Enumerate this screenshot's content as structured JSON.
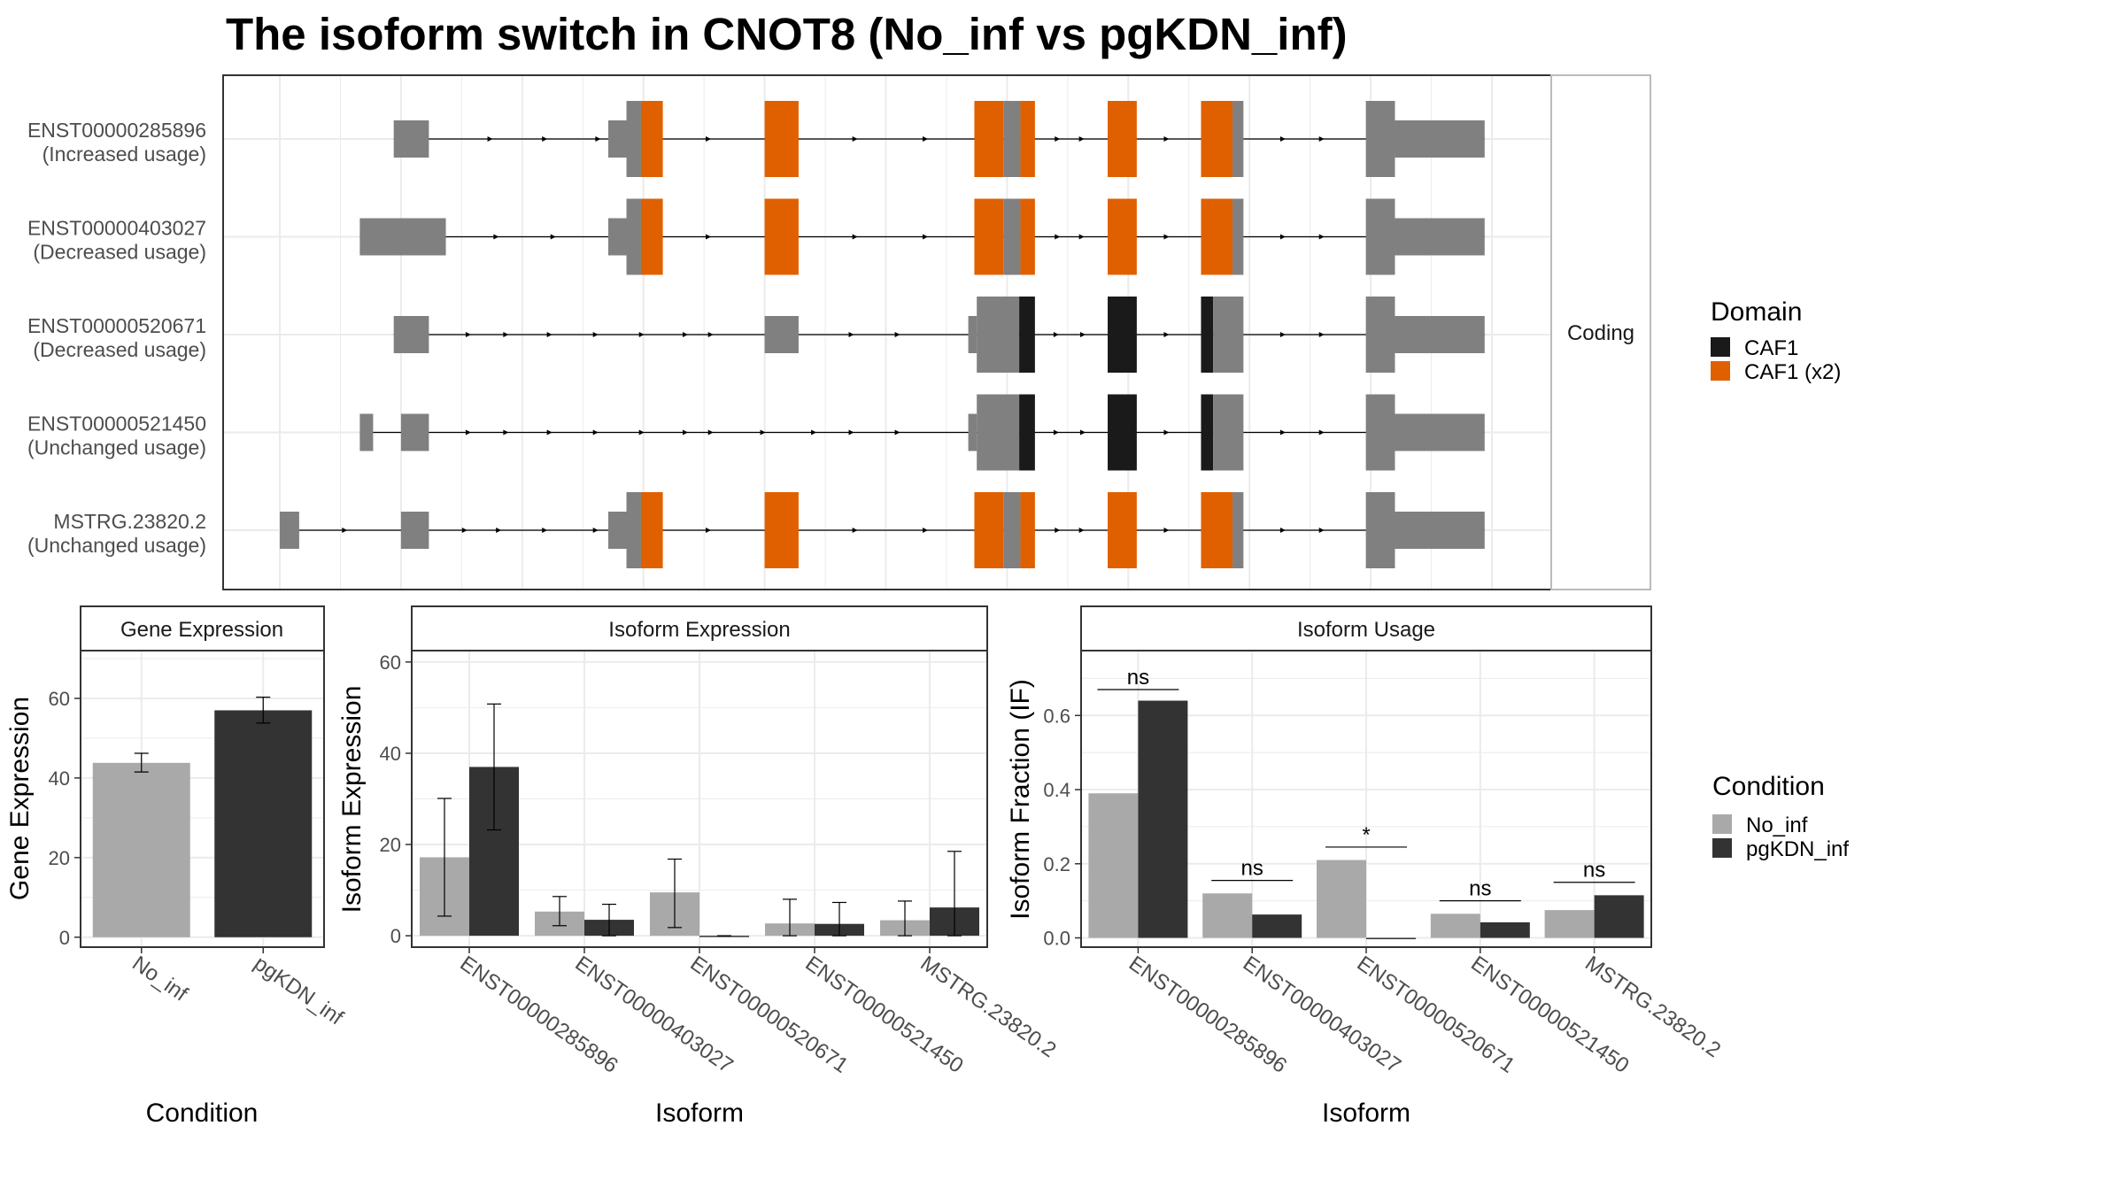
{
  "title": "The isoform switch in CNOT8 (No_inf vs pgKDN_inf)",
  "colors": {
    "utr": "#808080",
    "caf1": "#1a1a1a",
    "caf1_x2": "#e06000",
    "no_inf": "#a9a9a9",
    "pgkdn_inf": "#333333",
    "grid": "#ebebeb",
    "panel_border": "#333333",
    "strip_border": "#bbbbbb"
  },
  "chart_data": [
    {
      "type": "gene-structure",
      "facet_label": "Coding",
      "x_range": [
        0,
        1000
      ],
      "isoforms": [
        {
          "id": "ENST00000285896",
          "usage": "(Increased usage)",
          "blocks": [
            {
              "s": 94,
              "e": 123,
              "h": "t",
              "c": "utr"
            },
            {
              "s": 271,
              "e": 290,
              "h": "t",
              "c": "utr"
            },
            {
              "s": 286,
              "e": 298,
              "h": "f",
              "c": "utr"
            },
            {
              "s": 298,
              "e": 316,
              "h": "f",
              "c": "caf1_x2"
            },
            {
              "s": 400,
              "e": 428,
              "h": "f",
              "c": "caf1_x2"
            },
            {
              "s": 573,
              "e": 597,
              "h": "f",
              "c": "caf1_x2"
            },
            {
              "s": 597,
              "e": 611,
              "h": "f",
              "c": "utr"
            },
            {
              "s": 611,
              "e": 623,
              "h": "f",
              "c": "caf1_x2"
            },
            {
              "s": 683,
              "e": 707,
              "h": "f",
              "c": "caf1_x2"
            },
            {
              "s": 760,
              "e": 786,
              "h": "f",
              "c": "caf1_x2"
            },
            {
              "s": 786,
              "e": 795,
              "h": "f",
              "c": "utr"
            },
            {
              "s": 896,
              "e": 920,
              "h": "f",
              "c": "utr"
            },
            {
              "s": 920,
              "e": 994,
              "h": "t",
              "c": "utr"
            }
          ],
          "arrows": [
            175,
            220,
            264,
            355,
            476,
            534,
            643,
            663,
            733,
            829,
            861
          ]
        },
        {
          "id": "ENST00000403027",
          "usage": "(Decreased usage)",
          "blocks": [
            {
              "s": 66,
              "e": 137,
              "h": "t",
              "c": "utr"
            },
            {
              "s": 271,
              "e": 290,
              "h": "t",
              "c": "utr"
            },
            {
              "s": 286,
              "e": 298,
              "h": "f",
              "c": "utr"
            },
            {
              "s": 298,
              "e": 316,
              "h": "f",
              "c": "caf1_x2"
            },
            {
              "s": 400,
              "e": 428,
              "h": "f",
              "c": "caf1_x2"
            },
            {
              "s": 573,
              "e": 597,
              "h": "f",
              "c": "caf1_x2"
            },
            {
              "s": 597,
              "e": 611,
              "h": "f",
              "c": "utr"
            },
            {
              "s": 611,
              "e": 623,
              "h": "f",
              "c": "caf1_x2"
            },
            {
              "s": 683,
              "e": 707,
              "h": "f",
              "c": "caf1_x2"
            },
            {
              "s": 760,
              "e": 786,
              "h": "f",
              "c": "caf1_x2"
            },
            {
              "s": 786,
              "e": 795,
              "h": "f",
              "c": "utr"
            },
            {
              "s": 896,
              "e": 920,
              "h": "f",
              "c": "utr"
            },
            {
              "s": 920,
              "e": 994,
              "h": "t",
              "c": "utr"
            }
          ],
          "arrows": [
            180,
            227,
            355,
            476,
            534,
            643,
            663,
            733,
            829,
            861
          ]
        },
        {
          "id": "ENST00000520671",
          "usage": "(Decreased usage)",
          "blocks": [
            {
              "s": 94,
              "e": 123,
              "h": "t",
              "c": "utr"
            },
            {
              "s": 400,
              "e": 428,
              "h": "t",
              "c": "utr"
            },
            {
              "s": 568,
              "e": 575,
              "h": "t",
              "c": "utr"
            },
            {
              "s": 575,
              "e": 610,
              "h": "f",
              "c": "utr"
            },
            {
              "s": 610,
              "e": 623,
              "h": "f",
              "c": "caf1"
            },
            {
              "s": 683,
              "e": 707,
              "h": "f",
              "c": "caf1"
            },
            {
              "s": 760,
              "e": 770,
              "h": "f",
              "c": "caf1"
            },
            {
              "s": 770,
              "e": 795,
              "h": "f",
              "c": "utr"
            },
            {
              "s": 896,
              "e": 920,
              "h": "f",
              "c": "utr"
            },
            {
              "s": 920,
              "e": 994,
              "h": "t",
              "c": "utr"
            }
          ],
          "arrows": [
            157,
            188,
            224,
            262,
            300,
            336,
            357,
            473,
            511,
            642,
            664,
            733,
            829,
            861
          ]
        },
        {
          "id": "ENST00000521450",
          "usage": "(Unchanged usage)",
          "blocks": [
            {
              "s": 66,
              "e": 77,
              "h": "t",
              "c": "utr"
            },
            {
              "s": 100,
              "e": 123,
              "h": "t",
              "c": "utr"
            },
            {
              "s": 568,
              "e": 575,
              "h": "t",
              "c": "utr"
            },
            {
              "s": 575,
              "e": 610,
              "h": "f",
              "c": "utr"
            },
            {
              "s": 610,
              "e": 623,
              "h": "f",
              "c": "caf1"
            },
            {
              "s": 683,
              "e": 707,
              "h": "f",
              "c": "caf1"
            },
            {
              "s": 760,
              "e": 770,
              "h": "f",
              "c": "caf1"
            },
            {
              "s": 770,
              "e": 795,
              "h": "f",
              "c": "utr"
            },
            {
              "s": 896,
              "e": 920,
              "h": "f",
              "c": "utr"
            },
            {
              "s": 920,
              "e": 994,
              "h": "t",
              "c": "utr"
            }
          ],
          "arrows": [
            157,
            188,
            224,
            262,
            300,
            336,
            357,
            400,
            442,
            473,
            511,
            642,
            664,
            733,
            829,
            861
          ]
        },
        {
          "id": "MSTRG.23820.2",
          "usage": "(Unchanged usage)",
          "blocks": [
            {
              "s": 0,
              "e": 16,
              "h": "t",
              "c": "utr"
            },
            {
              "s": 100,
              "e": 123,
              "h": "t",
              "c": "utr"
            },
            {
              "s": 271,
              "e": 290,
              "h": "t",
              "c": "utr"
            },
            {
              "s": 286,
              "e": 298,
              "h": "f",
              "c": "utr"
            },
            {
              "s": 298,
              "e": 316,
              "h": "f",
              "c": "caf1_x2"
            },
            {
              "s": 400,
              "e": 428,
              "h": "f",
              "c": "caf1_x2"
            },
            {
              "s": 573,
              "e": 597,
              "h": "f",
              "c": "caf1_x2"
            },
            {
              "s": 597,
              "e": 611,
              "h": "f",
              "c": "utr"
            },
            {
              "s": 611,
              "e": 623,
              "h": "f",
              "c": "caf1_x2"
            },
            {
              "s": 683,
              "e": 707,
              "h": "f",
              "c": "caf1_x2"
            },
            {
              "s": 760,
              "e": 786,
              "h": "f",
              "c": "caf1_x2"
            },
            {
              "s": 786,
              "e": 795,
              "h": "f",
              "c": "utr"
            },
            {
              "s": 896,
              "e": 920,
              "h": "f",
              "c": "utr"
            },
            {
              "s": 920,
              "e": 994,
              "h": "t",
              "c": "utr"
            }
          ],
          "arrows": [
            55,
            154,
            182,
            220,
            262,
            355,
            476,
            534,
            643,
            663,
            733,
            829,
            861
          ]
        }
      ],
      "legend": {
        "title": "Domain",
        "items": [
          {
            "label": "CAF1",
            "color_key": "caf1"
          },
          {
            "label": "CAF1 (x2)",
            "color_key": "caf1_x2"
          }
        ]
      }
    },
    {
      "type": "bar",
      "facet_label": "Gene Expression",
      "xlabel": "Condition",
      "ylabel": "Gene Expression",
      "ylim": [
        -2.5,
        72
      ],
      "y_ticks": [
        0,
        20,
        40,
        60
      ],
      "categories": [
        "No_inf",
        "pgKDN_inf"
      ],
      "values": [
        43.8,
        57
      ],
      "errors": [
        [
          41.5,
          46.2
        ],
        [
          53.8,
          60.3
        ]
      ]
    },
    {
      "type": "bar",
      "facet_label": "Isoform Expression",
      "xlabel": "Isoform",
      "ylabel": "Isoform Expression",
      "ylim": [
        -2.5,
        62.5
      ],
      "y_ticks": [
        0,
        20,
        40,
        60
      ],
      "categories": [
        "ENST00000285896",
        "ENST00000403027",
        "ENST00000520671",
        "ENST00000521450",
        "MSTRG.23820.2"
      ],
      "series": [
        {
          "name": "No_inf",
          "values": [
            17.2,
            5.3,
            9.5,
            2.7,
            3.4
          ],
          "errors": [
            [
              4.3,
              30.1
            ],
            [
              2.2,
              8.6
            ],
            [
              1.8,
              16.8
            ],
            [
              0,
              8
            ],
            [
              0,
              7.6
            ]
          ]
        },
        {
          "name": "pgKDN_inf",
          "values": [
            37,
            3.5,
            0,
            2.6,
            6.2
          ],
          "errors": [
            [
              23.2,
              50.8
            ],
            [
              0,
              6.9
            ],
            [
              0,
              0
            ],
            [
              0,
              7.3
            ],
            [
              0,
              18.5
            ]
          ]
        }
      ]
    },
    {
      "type": "bar",
      "facet_label": "Isoform Usage",
      "xlabel": "Isoform",
      "ylabel": "Isoform Fraction (IF)",
      "ylim": [
        -0.025,
        0.775
      ],
      "y_ticks": [
        "0.0",
        "0.2",
        "0.4",
        "0.6"
      ],
      "categories": [
        "ENST00000285896",
        "ENST00000403027",
        "ENST00000520671",
        "ENST00000521450",
        "MSTRG.23820.2"
      ],
      "series": [
        {
          "name": "No_inf",
          "values": [
            0.39,
            0.12,
            0.21,
            0.065,
            0.075
          ]
        },
        {
          "name": "pgKDN_inf",
          "values": [
            0.64,
            0.063,
            0,
            0.042,
            0.115
          ]
        }
      ],
      "significance": [
        {
          "label": "ns",
          "y": 0.67
        },
        {
          "label": "ns",
          "y": 0.155
        },
        {
          "label": "*",
          "y": 0.245
        },
        {
          "label": "ns",
          "y": 0.1
        },
        {
          "label": "ns",
          "y": 0.15
        }
      ],
      "legend": {
        "title": "Condition",
        "items": [
          {
            "label": "No_inf",
            "color_key": "no_inf"
          },
          {
            "label": "pgKDN_inf",
            "color_key": "pgkdn_inf"
          }
        ]
      }
    }
  ]
}
